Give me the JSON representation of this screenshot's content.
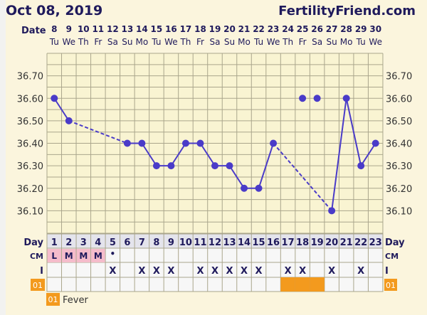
{
  "header": {
    "title": "Oct 08, 2019",
    "brand": "FertilityFriend.com"
  },
  "labels": {
    "date": "Date",
    "day": "Day",
    "cm": "CM",
    "intercourse": "I",
    "fever_code": "01"
  },
  "legend": {
    "code": "01",
    "label": "Fever"
  },
  "colors": {
    "background": "#fbf5dd",
    "plot": "#f9f4d2",
    "grid": "#aaa68c",
    "line": "#4a3bc8",
    "text": "#1f1a5c",
    "menses": "#f5bccb",
    "fever": "#f39a1e",
    "day_row": "#e4e4ec"
  },
  "chart_data": {
    "type": "line",
    "ylim": [
      36.0,
      36.8
    ],
    "yticks": [
      "36.70",
      "36.60",
      "36.50",
      "36.40",
      "36.30",
      "36.20",
      "36.10"
    ],
    "grid": true,
    "dates": [
      "8",
      "9",
      "10",
      "11",
      "12",
      "13",
      "14",
      "15",
      "16",
      "17",
      "18",
      "19",
      "20",
      "21",
      "22",
      "23",
      "24",
      "25",
      "26",
      "27",
      "28",
      "29",
      "30"
    ],
    "weekdays": [
      "Tu",
      "We",
      "Th",
      "Fr",
      "Sa",
      "Su",
      "Mo",
      "Tu",
      "We",
      "Th",
      "Fr",
      "Sa",
      "Su",
      "Mo",
      "Tu",
      "We",
      "Th",
      "Fr",
      "Sa",
      "Su",
      "Mo",
      "Tu",
      "We"
    ],
    "days": [
      "1",
      "2",
      "3",
      "4",
      "5",
      "6",
      "7",
      "8",
      "9",
      "10",
      "11",
      "12",
      "13",
      "14",
      "15",
      "16",
      "17",
      "18",
      "19",
      "20",
      "21",
      "22",
      "23"
    ],
    "temperatures": [
      36.6,
      36.5,
      null,
      null,
      null,
      36.4,
      36.4,
      36.3,
      36.3,
      36.4,
      36.4,
      36.3,
      36.3,
      36.2,
      36.2,
      36.4,
      null,
      36.6,
      36.6,
      36.1,
      36.6,
      36.3,
      36.4
    ],
    "excluded_days": [
      18,
      19
    ],
    "cm": [
      "L",
      "M",
      "M",
      "M",
      "•",
      "",
      "",
      "",
      "",
      "",
      "",
      "",
      "",
      "",
      "",
      "",
      "",
      "",
      "",
      "",
      "",
      "",
      ""
    ],
    "intercourse": [
      "",
      "",
      "",
      "",
      "X",
      "",
      "X",
      "X",
      "X",
      "",
      "X",
      "X",
      "X",
      "X",
      "X",
      "",
      "X",
      "X",
      "",
      "X",
      "",
      "X",
      ""
    ],
    "fever": [
      false,
      false,
      false,
      false,
      false,
      false,
      false,
      false,
      false,
      false,
      false,
      false,
      false,
      false,
      false,
      false,
      true,
      true,
      true,
      false,
      false,
      false,
      false
    ]
  }
}
